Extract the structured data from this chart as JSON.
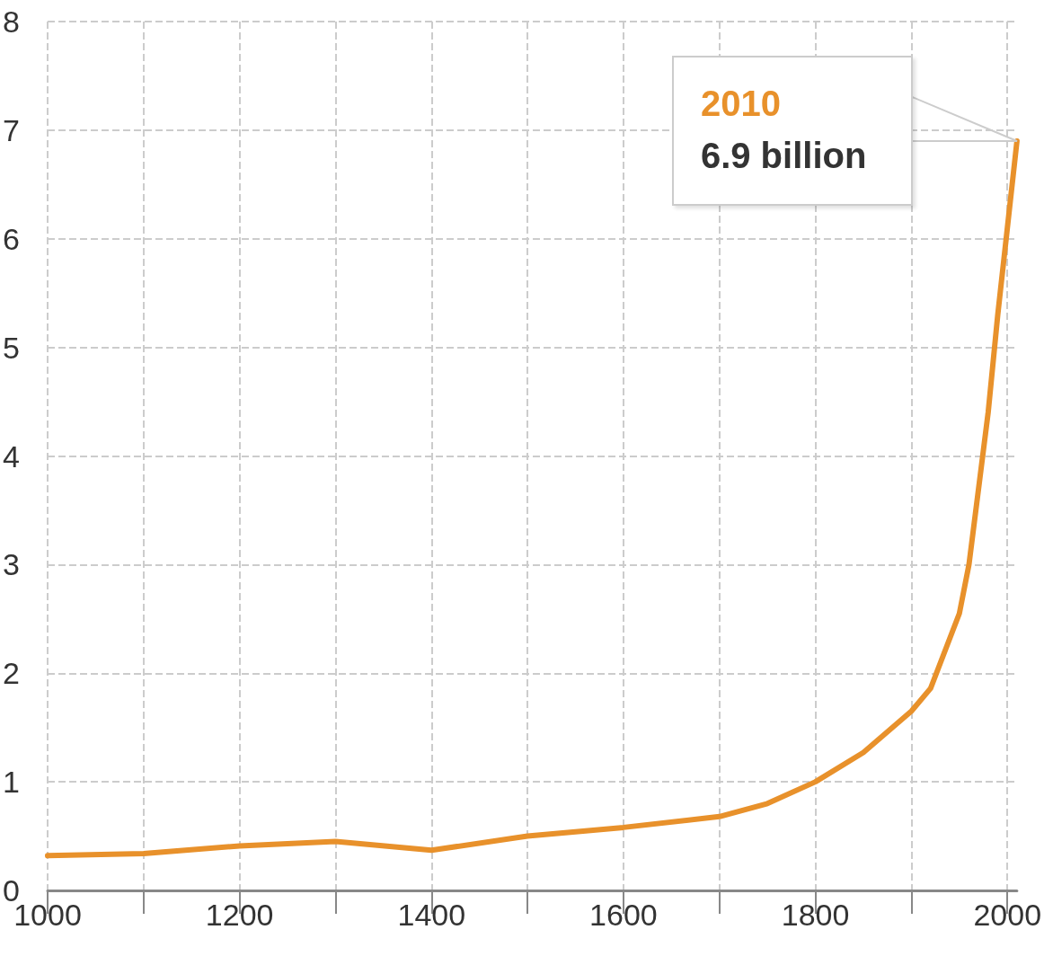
{
  "chart_data": {
    "type": "line",
    "x": [
      1000,
      1100,
      1200,
      1300,
      1400,
      1500,
      1600,
      1700,
      1750,
      1800,
      1850,
      1900,
      1920,
      1950,
      1960,
      1970,
      1980,
      1990,
      2000,
      2010
    ],
    "series": [
      {
        "color": "#e8912b",
        "values": [
          0.32,
          0.34,
          0.41,
          0.45,
          0.37,
          0.5,
          0.58,
          0.68,
          0.8,
          1.0,
          1.27,
          1.65,
          1.86,
          2.55,
          3.0,
          3.7,
          4.4,
          5.3,
          6.1,
          6.9
        ]
      }
    ],
    "xlim": [
      1000,
      2010
    ],
    "xticks": [
      1000,
      {
        "value": 1100,
        "label": null
      },
      1200,
      {
        "value": 1300,
        "label": null
      },
      1400,
      {
        "value": 1500,
        "label": null
      },
      1600,
      {
        "value": 1700,
        "label": null
      },
      1800,
      {
        "value": 1900,
        "label": null
      },
      2000
    ],
    "ylim": [
      0,
      8
    ],
    "yticks": [
      0,
      1,
      2,
      3,
      4,
      5,
      6,
      7,
      8
    ],
    "grid": true,
    "marker": "none",
    "line_style": "solid",
    "annotations": [
      "2010",
      "6.9 billion"
    ]
  }
}
